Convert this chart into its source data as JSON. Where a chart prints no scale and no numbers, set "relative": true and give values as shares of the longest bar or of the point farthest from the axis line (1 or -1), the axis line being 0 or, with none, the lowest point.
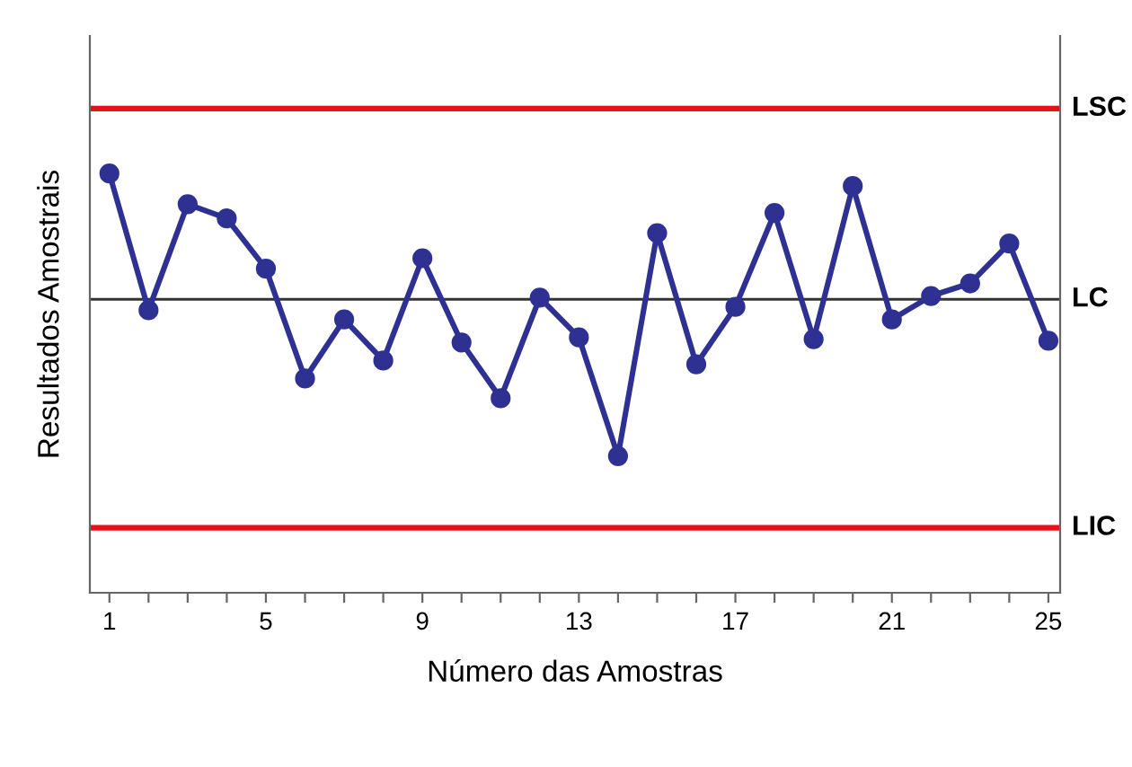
{
  "chart_data": {
    "type": "line",
    "relative": true,
    "xlabel": "Número das Amostras",
    "ylabel": "Resultados Amostrais",
    "x": [
      1,
      2,
      3,
      4,
      5,
      6,
      7,
      8,
      9,
      10,
      11,
      12,
      13,
      14,
      15,
      16,
      17,
      18,
      19,
      20,
      21,
      22,
      23,
      24,
      25
    ],
    "series": [
      {
        "color": "#2e3192",
        "values": [
          1.0,
          0.674,
          0.927,
          0.893,
          0.773,
          0.511,
          0.652,
          0.554,
          0.798,
          0.597,
          0.464,
          0.704,
          0.609,
          0.326,
          0.858,
          0.545,
          0.682,
          0.906,
          0.605,
          0.97,
          0.652,
          0.708,
          0.738,
          0.833,
          0.601
        ]
      }
    ],
    "marker": "circle",
    "line_style": "solid",
    "grid": false,
    "legend": false,
    "xlim": [
      0.5,
      25.3
    ],
    "xticks": [
      1,
      {
        "value": 2,
        "label": null
      },
      {
        "value": 3,
        "label": null
      },
      {
        "value": 4,
        "label": null
      },
      5,
      {
        "value": 6,
        "label": null
      },
      {
        "value": 7,
        "label": null
      },
      {
        "value": 8,
        "label": null
      },
      9,
      {
        "value": 10,
        "label": null
      },
      {
        "value": 11,
        "label": null
      },
      {
        "value": 12,
        "label": null
      },
      13,
      {
        "value": 14,
        "label": null
      },
      {
        "value": 15,
        "label": null
      },
      {
        "value": 16,
        "label": null
      },
      17,
      {
        "value": 18,
        "label": null
      },
      {
        "value": 19,
        "label": null
      },
      {
        "value": 20,
        "label": null
      },
      21,
      {
        "value": 22,
        "label": null
      },
      {
        "value": 23,
        "label": null
      },
      {
        "value": 24,
        "label": null
      },
      25
    ],
    "ref_lines": [
      {
        "axis": "y",
        "value": 1.155,
        "label": "LSC",
        "color": "#e8101a"
      },
      {
        "axis": "y",
        "value": 0.7,
        "label": "LC",
        "color": "#333333"
      },
      {
        "axis": "y",
        "value": 0.155,
        "label": "LIC",
        "color": "#e8101a"
      }
    ]
  }
}
